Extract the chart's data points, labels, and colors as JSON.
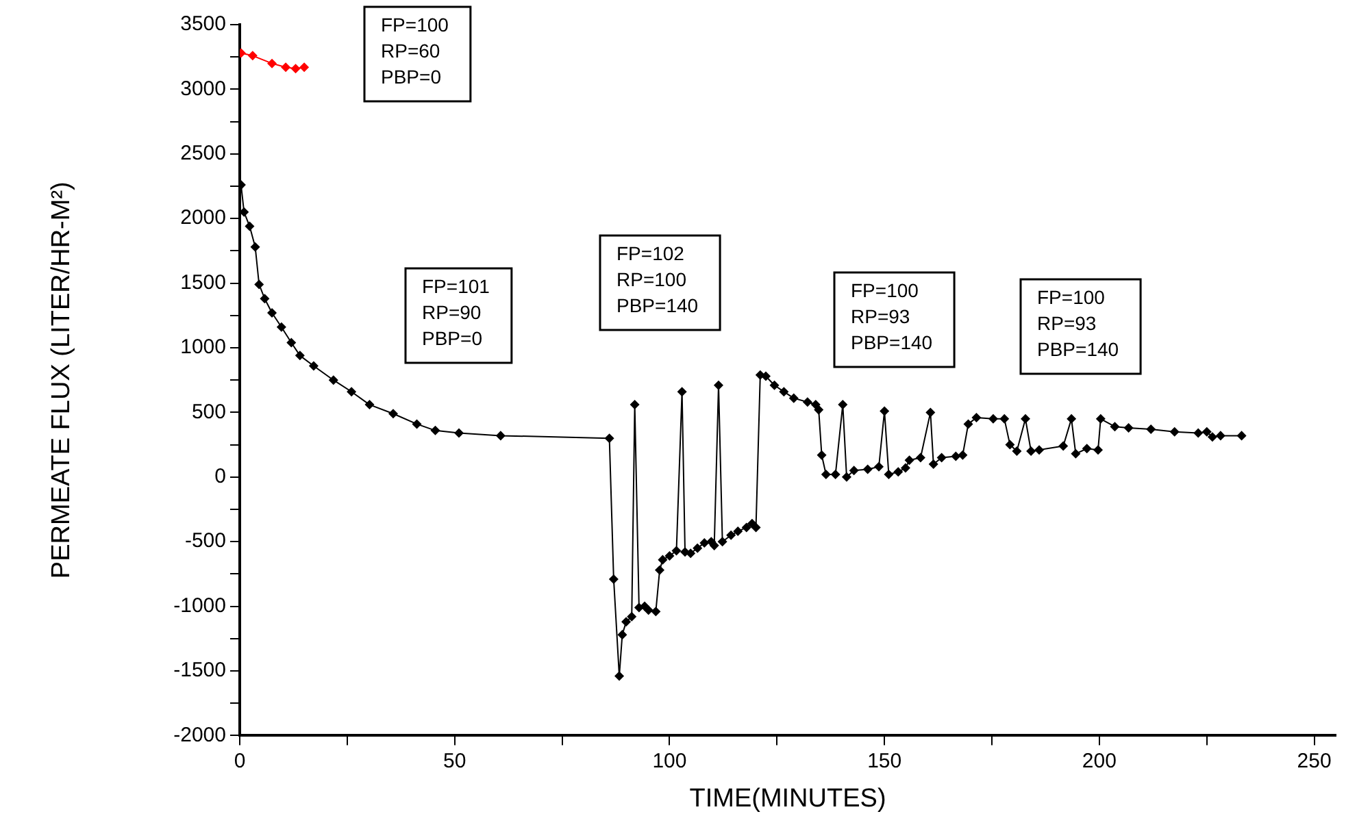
{
  "chart_data": {
    "type": "scatter",
    "xlabel": "TIME(MINUTES)",
    "ylabel": "PERMEATE FLUX (LITER/HR-M²)",
    "xlim": [
      0,
      255
    ],
    "xticks": [
      0,
      {
        "value": 25,
        "label": null
      },
      50,
      {
        "value": 75,
        "label": null
      },
      100,
      {
        "value": 125,
        "label": null
      },
      150,
      {
        "value": 175,
        "label": null
      },
      200,
      {
        "value": 225,
        "label": null
      },
      250
    ],
    "ylim": [
      -2000,
      3500
    ],
    "yticks": [
      -2000,
      {
        "value": -1750,
        "label": null
      },
      -1500,
      {
        "value": -1250,
        "label": null
      },
      -1000,
      {
        "value": -750,
        "label": null
      },
      -500,
      {
        "value": -250,
        "label": null
      },
      0,
      {
        "value": 250,
        "label": null
      },
      500,
      {
        "value": 750,
        "label": null
      },
      1000,
      {
        "value": 1250,
        "label": null
      },
      1500,
      {
        "value": 1750,
        "label": null
      },
      2000,
      {
        "value": 2250,
        "label": null
      },
      2500,
      {
        "value": 2750,
        "label": null
      },
      3000,
      {
        "value": 3250,
        "label": null
      },
      3500
    ],
    "grid": false,
    "legend": false,
    "marker": "diamond",
    "line_style": "solid",
    "series": [
      {
        "type": "line",
        "color": "#ff0000",
        "x": [
          0.3,
          3,
          7.5,
          10.7,
          13,
          15
        ],
        "values": [
          3280,
          3260,
          3200,
          3170,
          3160,
          3170
        ]
      },
      {
        "type": "line",
        "color": "#000000",
        "x": [
          0.3,
          1,
          2.3,
          3.6,
          4.5,
          5.8,
          7.5,
          9.7,
          12,
          14,
          17.2,
          21.8,
          26,
          30.2,
          35.7,
          41.2,
          45.5,
          51,
          60.7,
          86,
          87,
          88.3,
          89,
          89.9,
          91.2,
          91.9,
          92.9,
          94.2,
          95.1,
          96.8,
          97.7,
          98.4,
          100,
          101.6,
          102.9,
          103.6,
          104.9,
          106.5,
          108.1,
          109.7,
          110.4,
          111.4,
          112.3,
          114.3,
          115.9,
          117.9,
          119.2,
          120.1,
          121.1,
          122.4,
          124.4,
          126.6,
          128.9,
          132.1,
          134,
          134.7,
          135.4,
          136.4,
          138.6,
          140.3,
          141.2,
          142.9,
          146.1,
          148.7,
          150,
          151,
          153.2,
          154.9,
          155.8,
          158.4,
          160.7,
          161.4,
          163.3,
          166.6,
          168.2,
          169.5,
          171.4,
          175.3,
          177.9,
          179.2,
          180.8,
          182.8,
          184.1,
          186,
          191.6,
          193.5,
          194.5,
          197.1,
          199.7,
          200.3,
          203.6,
          206.8,
          212,
          217.5,
          223,
          225,
          226.3,
          228.2,
          233.1
        ],
        "values": [
          2260,
          2050,
          1940,
          1780,
          1490,
          1380,
          1270,
          1160,
          1040,
          940,
          860,
          750,
          660,
          560,
          490,
          410,
          360,
          340,
          320,
          300,
          -790,
          -1540,
          -1220,
          -1120,
          -1080,
          560,
          -1010,
          -1000,
          -1030,
          -1040,
          -720,
          -640,
          -610,
          -570,
          660,
          -580,
          -590,
          -550,
          -510,
          -500,
          -530,
          710,
          -500,
          -450,
          -420,
          -390,
          -360,
          -390,
          790,
          780,
          710,
          660,
          610,
          580,
          560,
          520,
          170,
          20,
          20,
          560,
          0,
          50,
          60,
          80,
          510,
          20,
          40,
          70,
          130,
          150,
          500,
          100,
          150,
          160,
          170,
          410,
          460,
          450,
          450,
          250,
          200,
          450,
          200,
          210,
          240,
          450,
          180,
          220,
          210,
          450,
          390,
          380,
          370,
          350,
          340,
          350,
          310,
          320,
          320
        ]
      }
    ],
    "annotations": [
      "FP=100\nRP=60\nPBP=0",
      "FP=101\nRP=90\nPBP=0",
      "FP=102\nRP=100\nPBP=140",
      "FP=100\nRP=93\nPBP=140",
      "FP=100\nRP=93\nPBP=140"
    ]
  }
}
